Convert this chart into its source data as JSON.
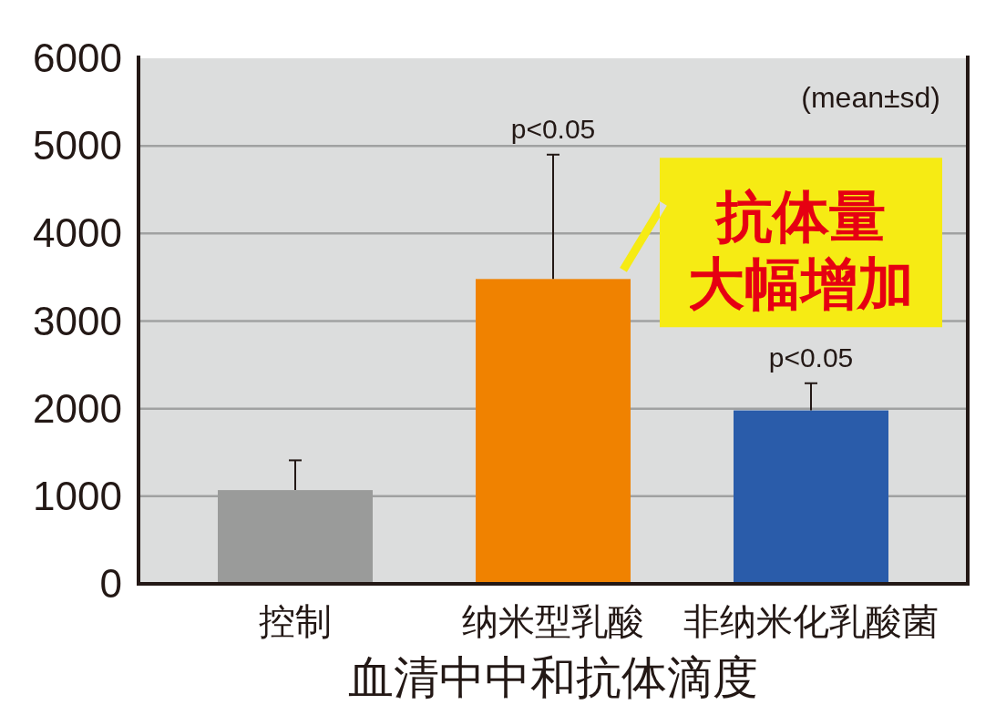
{
  "chart_data": {
    "type": "bar",
    "categories": [
      "控制",
      "纳米型乳酸",
      "非纳米化乳酸菌"
    ],
    "values": [
      1070,
      3480,
      1980
    ],
    "colors": [
      "#9a9b9a",
      "#f08200",
      "#2a5caa"
    ],
    "errors": [
      [
        1070,
        1410
      ],
      [
        3480,
        4900
      ],
      [
        1980,
        2290
      ]
    ],
    "ylim": [
      0,
      6000
    ],
    "yticks": [
      0,
      1000,
      2000,
      3000,
      4000,
      5000,
      6000
    ],
    "grid": "y",
    "xlabel": "血清中中和抗体滴度",
    "annotations": [
      "(mean±sd)",
      {
        "text": "p<0.05",
        "x": "纳米型乳酸",
        "y": 4900
      },
      {
        "text": "p<0.05",
        "x": "非纳米化乳酸菌",
        "y": 2290
      },
      {
        "text": "抗体量大幅增加",
        "x": "纳米型乳酸",
        "y": 3480
      }
    ]
  }
}
